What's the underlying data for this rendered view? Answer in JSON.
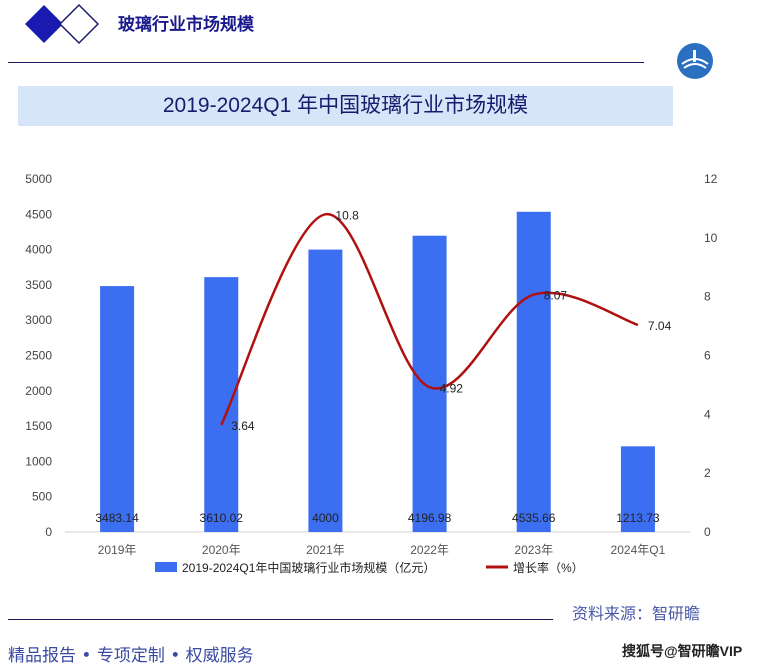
{
  "header": {
    "title": "玻璃行业市场规模"
  },
  "colors": {
    "bar": "#3b6ef0",
    "line": "#b01010",
    "logo": "#1a1ab0"
  },
  "chart_data": {
    "type": "bar+line",
    "title": "2019-2024Q1 年中国玻璃行业市场规模",
    "categories": [
      "2019年",
      "2020年",
      "2021年",
      "2022年",
      "2023年",
      "2024年Q1"
    ],
    "series": [
      {
        "name": "2019-2024Q1年中国玻璃行业市场规模（亿元）",
        "type": "bar",
        "axis": "left",
        "values": [
          3483.14,
          3610.02,
          4000,
          4196.98,
          4535.66,
          1213.73
        ],
        "labels": [
          "3483.14",
          "3610.02",
          "4000",
          "4196.98",
          "4535.66",
          "1213.73"
        ]
      },
      {
        "name": "增长率（%）",
        "type": "line",
        "axis": "right",
        "values": [
          null,
          3.64,
          10.8,
          4.92,
          8.07,
          7.04
        ],
        "labels": [
          "",
          "3.64",
          "10.8",
          "4.92",
          "8.07",
          "7.04"
        ]
      }
    ],
    "yleft": {
      "range": [
        0,
        5000
      ],
      "ticks": [
        "0",
        "500",
        "1000",
        "1500",
        "2000",
        "2500",
        "3000",
        "3500",
        "4000",
        "4500",
        "5000"
      ]
    },
    "yright": {
      "range": [
        0,
        12
      ],
      "ticks": [
        "0",
        "2",
        "4",
        "6",
        "8",
        "10",
        "12"
      ]
    },
    "legend": "bottom",
    "grid": false
  },
  "source": "资料来源：智研瞻",
  "footer": "精品报告 •  专项定制 • 权威服务",
  "watermark": "搜狐号@智研瞻VIP"
}
